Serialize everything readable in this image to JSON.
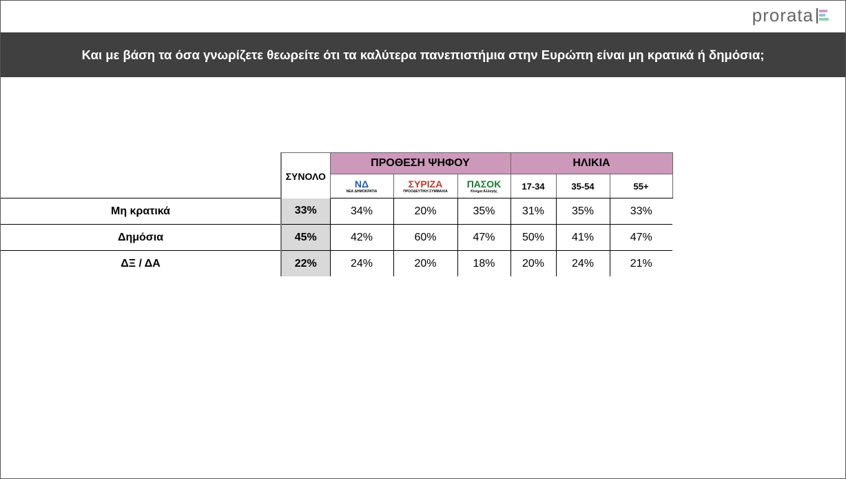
{
  "header": {
    "brand": "prorata",
    "title": "Και με βάση τα όσα γνωρίζετε θεωρείτε ότι τα καλύτερα πανεπιστήμια στην Ευρώπη είναι μη κρατικά ή δημόσια;"
  },
  "table": {
    "total_header": "ΣΥΝΟΛΟ",
    "groups": [
      "ΠΡΟΘΕΣΗ ΨΗΦΟΥ",
      "ΗΛΙΚΙΑ"
    ],
    "parties": [
      {
        "name": "ΝΔ",
        "subtitle": "ΝΕΑ ΔΗΜΟΚΡΑΤΙΑ"
      },
      {
        "name": "ΣΥΡΙΖΑ",
        "subtitle": "ΠΡΟΟΔΕΥΤΙΚΗ ΣΥΜΜΑΧΙΑ"
      },
      {
        "name": "ΠΑΣΟΚ",
        "subtitle": "Κίνημα Αλλαγής"
      }
    ],
    "ages": [
      "17-34",
      "35-54",
      "55+"
    ],
    "rows": [
      {
        "label": "Μη κρατικά",
        "total": "33%",
        "values": [
          "34%",
          "20%",
          "35%",
          "31%",
          "35%",
          "33%"
        ]
      },
      {
        "label": "Δημόσια",
        "total": "45%",
        "values": [
          "42%",
          "60%",
          "47%",
          "50%",
          "41%",
          "47%"
        ]
      },
      {
        "label": "ΔΞ / ΔΑ",
        "total": "22%",
        "values": [
          "24%",
          "20%",
          "18%",
          "20%",
          "24%",
          "21%"
        ]
      }
    ]
  }
}
